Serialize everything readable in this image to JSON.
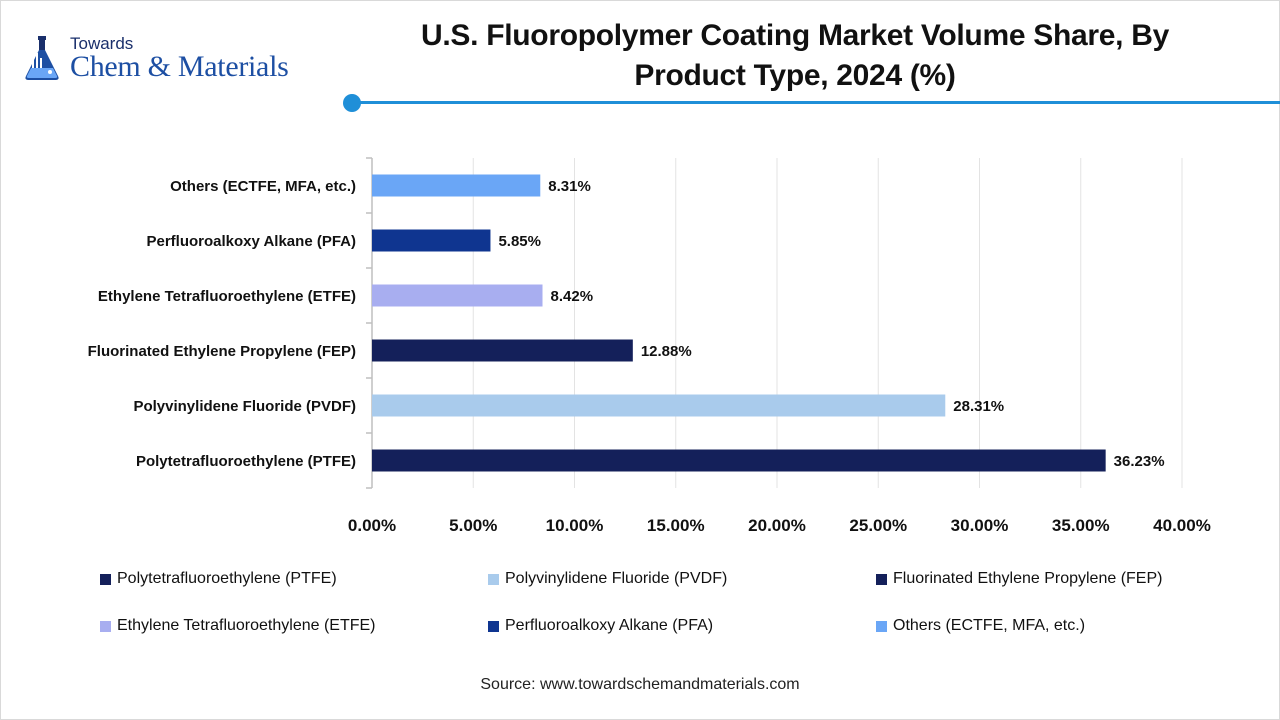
{
  "logo": {
    "top_text": "Towards",
    "main_text": "Chem & Materials",
    "icon": "flask-lab-icon"
  },
  "colors": {
    "accent": "#1f8fd8",
    "ptfe": "#14205a",
    "pvdf": "#a9cbec",
    "fep": "#14205a",
    "etfe": "#a8aef0",
    "pfa": "#0f3590",
    "others": "#6aa6f6"
  },
  "source": "Source: www.towardschemandmaterials.com",
  "chart_data": {
    "type": "bar",
    "orientation": "horizontal",
    "title": "U.S. Fluoropolymer Coating Market Volume Share, By Product Type, 2024 (%)",
    "categories": [
      "Polytetrafluoroethylene (PTFE)",
      "Polyvinylidene Fluoride (PVDF)",
      "Fluorinated Ethylene Propylene (FEP)",
      "Ethylene Tetrafluoroethylene (ETFE)",
      "Perfluoroalkoxy Alkane (PFA)",
      "Others (ECTFE, MFA, etc.)"
    ],
    "values": [
      36.23,
      28.31,
      12.88,
      8.42,
      5.85,
      8.31
    ],
    "value_labels": [
      "36.23%",
      "28.31%",
      "12.88%",
      "8.42%",
      "5.85%",
      "8.31%"
    ],
    "bar_colors": [
      "#14205a",
      "#a9cbec",
      "#14205a",
      "#a8aef0",
      "#0f3590",
      "#6aa6f6"
    ],
    "xlim": [
      0,
      40
    ],
    "xticks": [
      0,
      5,
      10,
      15,
      20,
      25,
      30,
      35,
      40
    ],
    "xtick_labels": [
      "0.00%",
      "5.00%",
      "10.00%",
      "15.00%",
      "20.00%",
      "25.00%",
      "30.00%",
      "35.00%",
      "40.00%"
    ],
    "xlabel": "",
    "ylabel": "",
    "grid": "vertical",
    "legend": {
      "placement": "bottom",
      "entries": [
        "Polytetrafluoroethylene (PTFE)",
        "Polyvinylidene Fluoride (PVDF)",
        "Fluorinated Ethylene Propylene (FEP)",
        "Ethylene Tetrafluoroethylene (ETFE)",
        "Perfluoroalkoxy Alkane (PFA)",
        "Others (ECTFE, MFA, etc.)"
      ]
    }
  }
}
